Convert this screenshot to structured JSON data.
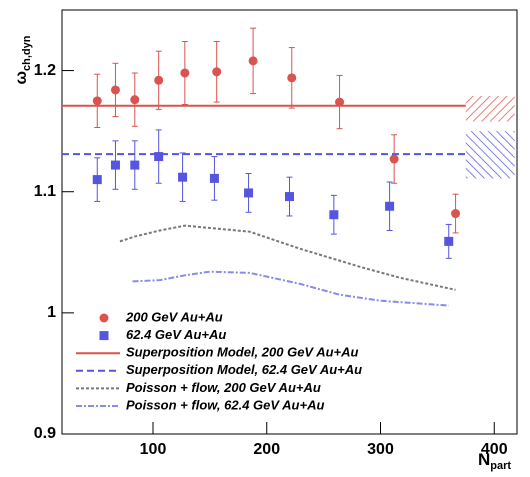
{
  "chart_data": {
    "type": "scatter",
    "ylabel": {
      "main": "ω",
      "sub": "ch,dyn"
    },
    "xlabel": {
      "main": "N",
      "sub": "part"
    },
    "xlim": [
      20,
      420
    ],
    "ylim": [
      0.9,
      1.25
    ],
    "xticks": [
      100,
      200,
      300,
      400
    ],
    "yticks": [
      0.9,
      1,
      1.1,
      1.2
    ],
    "series": [
      {
        "name": "200 GeV Au+Au",
        "kind": "points",
        "marker": "circle",
        "color": "#d9534f",
        "x": [
          51,
          67,
          84,
          105,
          128,
          156,
          188,
          222,
          264,
          312,
          366
        ],
        "values": [
          1.175,
          1.184,
          1.176,
          1.192,
          1.198,
          1.199,
          1.208,
          1.194,
          1.174,
          1.127,
          1.082
        ],
        "errors": [
          0.022,
          0.022,
          0.022,
          0.024,
          0.026,
          0.025,
          0.027,
          0.025,
          0.022,
          0.02,
          0.016
        ]
      },
      {
        "name": "62.4 GeV Au+Au",
        "kind": "points",
        "marker": "square",
        "color": "#5555e0",
        "x": [
          51,
          67,
          84,
          105,
          126,
          154,
          184,
          220,
          259,
          308,
          360
        ],
        "values": [
          1.11,
          1.122,
          1.122,
          1.129,
          1.112,
          1.111,
          1.099,
          1.096,
          1.081,
          1.088,
          1.059
        ],
        "errors": [
          0.018,
          0.02,
          0.02,
          0.022,
          0.02,
          0.018,
          0.016,
          0.016,
          0.016,
          0.02,
          0.014
        ]
      },
      {
        "name": "Superposition Model, 200 GeV Au+Au",
        "kind": "line",
        "dash": "none",
        "color": "#d9534f",
        "x": [
          20,
          375
        ],
        "values": [
          1.171,
          1.171
        ]
      },
      {
        "name": "Superposition Model, 62.4 GeV Au+Au",
        "kind": "line",
        "dash": "7 4",
        "color": "#5555e0",
        "x": [
          20,
          375
        ],
        "values": [
          1.131,
          1.131
        ]
      },
      {
        "name": "Poisson + flow, 200 GeV Au+Au",
        "kind": "line",
        "dash": "3 2",
        "color": "#777777",
        "x": [
          71,
          84,
          106,
          128,
          185,
          229,
          282,
          317,
          366
        ],
        "values": [
          1.059,
          1.063,
          1.068,
          1.072,
          1.067,
          1.053,
          1.038,
          1.029,
          1.019
        ]
      },
      {
        "name": "Poisson + flow, 62.4 GeV Au+Au",
        "kind": "line",
        "dash": "6 2 2 2",
        "color": "#8a8ae8",
        "x": [
          82,
          106,
          128,
          150,
          185,
          229,
          264,
          300,
          360
        ],
        "values": [
          1.026,
          1.027,
          1.031,
          1.034,
          1.033,
          1.024,
          1.015,
          1.01,
          1.006
        ]
      }
    ],
    "bands": [
      {
        "color": "#d9534f",
        "x": [
          375,
          418
        ],
        "range": [
          1.158,
          1.179
        ]
      },
      {
        "color": "#5555e0",
        "x": [
          375,
          418
        ],
        "range": [
          1.111,
          1.15
        ]
      }
    ]
  }
}
